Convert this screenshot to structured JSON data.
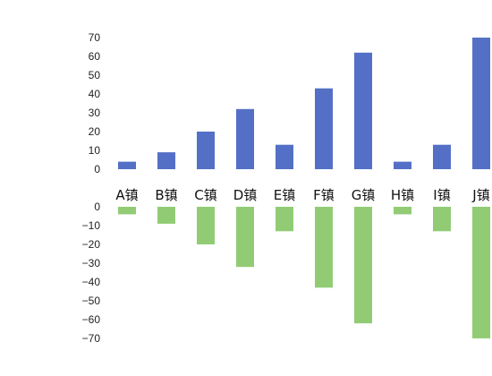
{
  "chart_data": [
    {
      "type": "bar",
      "categories": [
        "A镇",
        "B镇",
        "C镇",
        "D镇",
        "E镇",
        "F镇",
        "G镇",
        "H镇",
        "I镇",
        "J镇"
      ],
      "values": [
        4,
        9,
        20,
        32,
        13,
        43,
        62,
        4,
        13,
        70
      ],
      "ylim": [
        0,
        70
      ],
      "yticks": [
        "0",
        "10",
        "20",
        "30",
        "40",
        "50",
        "60",
        "70"
      ],
      "color": "#5470c6",
      "grid": false,
      "legend": "none"
    },
    {
      "type": "bar",
      "categories": [
        "A镇",
        "B镇",
        "C镇",
        "D镇",
        "E镇",
        "F镇",
        "G镇",
        "H镇",
        "I镇",
        "J镇"
      ],
      "values": [
        -4,
        -9,
        -20,
        -32,
        -13,
        -43,
        -62,
        -4,
        -13,
        -70
      ],
      "ylim": [
        -70,
        0
      ],
      "yticks": [
        "0",
        "−10",
        "−20",
        "−30",
        "−40",
        "−50",
        "−60",
        "−70"
      ],
      "color": "#91cc75",
      "grid": false,
      "legend": "none"
    }
  ]
}
